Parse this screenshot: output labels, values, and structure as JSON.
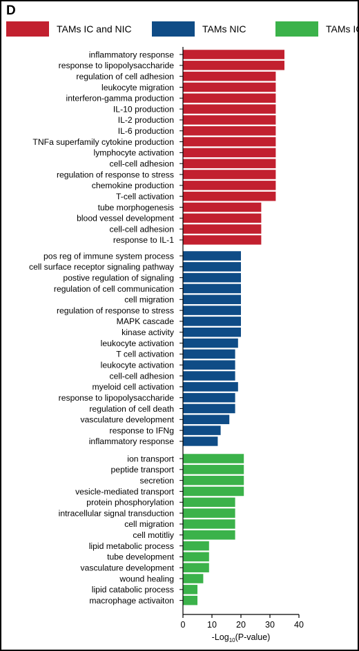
{
  "panel_letter": "D",
  "colors": {
    "ic_and_nic": "#c2202f",
    "nic": "#0f4c86",
    "ic": "#3bb24a"
  },
  "legend": [
    {
      "label": "TAMs IC and NIC",
      "color": "#c2202f"
    },
    {
      "label": "TAMs NIC",
      "color": "#0f4c86"
    },
    {
      "label": "TAMs IC",
      "color": "#3bb24a"
    }
  ],
  "chart_data": {
    "type": "bar",
    "orientation": "horizontal",
    "xlabel_prefix": "-Log",
    "xlabel_sub": "10",
    "xlabel_suffix": "(P-value)",
    "xlim": [
      0,
      40
    ],
    "xticks": [
      0,
      10,
      20,
      30,
      40
    ],
    "grid": false,
    "legend_position": "top",
    "series": [
      {
        "name": "TAMs IC and NIC",
        "color": "#c2202f",
        "categories": [
          "inflammatory response",
          "response to lipopolysaccharide",
          "regulation of cell adhesion",
          "leukocyte migration",
          "interferon-gamma production",
          "IL-10 production",
          "IL-2 production",
          "IL-6 production",
          "TNFa superfamily cytokine production",
          "lymphocyte activation",
          "cell-cell adhesion",
          "regulation of response to stress",
          "chemokine production",
          "T-cell activation",
          "tube morphogenesis",
          "blood vessel development",
          "cell-cell adhesion",
          "response to IL-1"
        ],
        "values": [
          35,
          35,
          32,
          32,
          32,
          32,
          32,
          32,
          32,
          32,
          32,
          32,
          32,
          32,
          27,
          27,
          27,
          27
        ]
      },
      {
        "name": "TAMs NIC",
        "color": "#0f4c86",
        "categories": [
          "pos reg of immune system process",
          "cell surface receptor signaling pathway",
          "postive regulation of signaling",
          "regulation of cell communication",
          "cell migration",
          "regulation of response to stress",
          "MAPK cascade",
          "kinase activity",
          "leukocyte activation",
          "T cell activation",
          "leukocyte activation",
          "cell-cell adhesion",
          "myeloid cell activation",
          "response to lipopolysaccharide",
          "regulation of cell death",
          "vasculature development",
          "response to IFNg",
          "inflammatory response"
        ],
        "values": [
          20,
          20,
          20,
          20,
          20,
          20,
          20,
          20,
          19,
          18,
          18,
          18,
          19,
          18,
          18,
          16,
          13,
          12
        ]
      },
      {
        "name": "TAMs IC",
        "color": "#3bb24a",
        "categories": [
          "ion transport",
          "peptide transport",
          "secretion",
          "vesicle-mediated transport",
          "protein phosphorylation",
          "intracellular signal transduction",
          "cell migration",
          "cell motitliy",
          "lipid metabolic process",
          "tube development",
          "vasculature development",
          "wound healing",
          "lipid catabolic process",
          "macrophage activaiton"
        ],
        "values": [
          21,
          21,
          21,
          21,
          18,
          18,
          18,
          18,
          9,
          9,
          9,
          7,
          5,
          5
        ]
      }
    ]
  }
}
